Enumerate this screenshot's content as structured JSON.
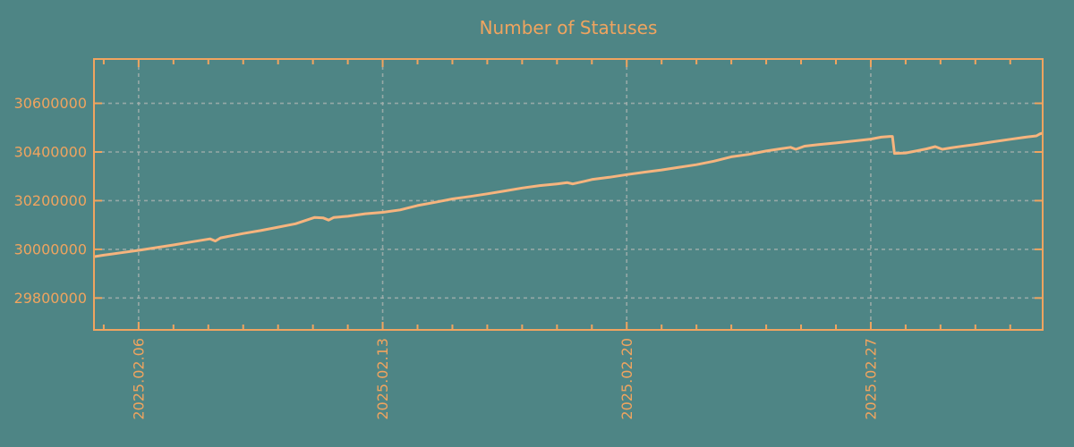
{
  "colors": {
    "background": "#4e8585",
    "axis": "#f0a45f",
    "text": "#f0a45f",
    "grid": "#a8b2b0",
    "line": "#f6b47e"
  },
  "chart_data": {
    "type": "line",
    "title": "Number of Statuses",
    "grid": true,
    "legend": false,
    "x_axis": {
      "unit": "date (days of 2025.02, fractional; >28 continues into March)",
      "range": [
        4.72,
        31.93
      ],
      "major_ticks": [
        {
          "pos": 6,
          "label": "2025.02.06"
        },
        {
          "pos": 13,
          "label": "2025.02.13"
        },
        {
          "pos": 20,
          "label": "2025.02.20"
        },
        {
          "pos": 27,
          "label": "2025.02.27"
        }
      ],
      "minor_tick_step": 1,
      "label_rotation_deg": -90
    },
    "y_axis": {
      "range": [
        29669000,
        30782000
      ],
      "major_ticks": [
        {
          "value": 29800000,
          "label": "29800000"
        },
        {
          "value": 30000000,
          "label": "30000000"
        },
        {
          "value": 30200000,
          "label": "30200000"
        },
        {
          "value": 30400000,
          "label": "30400000"
        },
        {
          "value": 30600000,
          "label": "30600000"
        }
      ]
    },
    "series": [
      {
        "name": "statuses",
        "color": "#f6b47e",
        "points": [
          [
            4.72,
            29970000
          ],
          [
            5.0,
            29976000
          ],
          [
            5.5,
            29986000
          ],
          [
            6.0,
            29996000
          ],
          [
            6.5,
            30007000
          ],
          [
            7.0,
            30018000
          ],
          [
            7.5,
            30030000
          ],
          [
            8.05,
            30043000
          ],
          [
            8.2,
            30034000
          ],
          [
            8.35,
            30047000
          ],
          [
            9.0,
            30065000
          ],
          [
            9.5,
            30077000
          ],
          [
            10.0,
            30091000
          ],
          [
            10.5,
            30105000
          ],
          [
            11.05,
            30131000
          ],
          [
            11.3,
            30129000
          ],
          [
            11.45,
            30120000
          ],
          [
            11.6,
            30131000
          ],
          [
            12.0,
            30136000
          ],
          [
            12.5,
            30146000
          ],
          [
            13.0,
            30152000
          ],
          [
            13.5,
            30162000
          ],
          [
            14.0,
            30180000
          ],
          [
            14.5,
            30193000
          ],
          [
            15.0,
            30207000
          ],
          [
            15.5,
            30217000
          ],
          [
            16.0,
            30228000
          ],
          [
            16.5,
            30240000
          ],
          [
            17.0,
            30252000
          ],
          [
            17.5,
            30262000
          ],
          [
            18.0,
            30269000
          ],
          [
            18.3,
            30274000
          ],
          [
            18.45,
            30269000
          ],
          [
            18.8,
            30280000
          ],
          [
            19.0,
            30287000
          ],
          [
            19.5,
            30296000
          ],
          [
            20.0,
            30307000
          ],
          [
            20.5,
            30317000
          ],
          [
            21.0,
            30326000
          ],
          [
            21.5,
            30337000
          ],
          [
            22.0,
            30348000
          ],
          [
            22.5,
            30362000
          ],
          [
            23.0,
            30380000
          ],
          [
            23.5,
            30390000
          ],
          [
            24.0,
            30404000
          ],
          [
            24.4,
            30413000
          ],
          [
            24.7,
            30419000
          ],
          [
            24.85,
            30411000
          ],
          [
            25.1,
            30424000
          ],
          [
            25.5,
            30430000
          ],
          [
            26.0,
            30437000
          ],
          [
            26.5,
            30445000
          ],
          [
            27.0,
            30453000
          ],
          [
            27.3,
            30461000
          ],
          [
            27.55,
            30464000
          ],
          [
            27.62,
            30464000
          ],
          [
            27.68,
            30394000
          ],
          [
            28.0,
            30396000
          ],
          [
            28.3,
            30404000
          ],
          [
            28.6,
            30413000
          ],
          [
            28.85,
            30422000
          ],
          [
            29.05,
            30411000
          ],
          [
            29.3,
            30417000
          ],
          [
            29.6,
            30423000
          ],
          [
            30.0,
            30431000
          ],
          [
            30.5,
            30442000
          ],
          [
            31.0,
            30452000
          ],
          [
            31.5,
            30462000
          ],
          [
            31.75,
            30466000
          ],
          [
            31.85,
            30474000
          ],
          [
            31.93,
            30478000
          ]
        ]
      }
    ]
  }
}
